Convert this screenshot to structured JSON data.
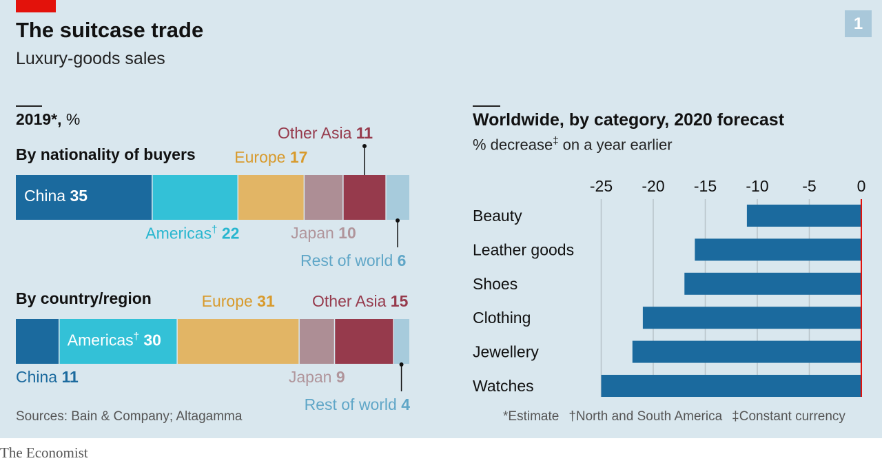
{
  "header": {
    "title": "The suitcase trade",
    "subtitle": "Luxury-goods sales",
    "badge": "1"
  },
  "left": {
    "heading_bold": "2019*,",
    "heading_unit": "%",
    "nationality_title": "By nationality of buyers",
    "country_title": "By country/region"
  },
  "right": {
    "heading": "Worldwide, by category, 2020 forecast",
    "subheading_pre": "% decrease",
    "subheading_mark": "‡",
    "subheading_post": " on a year earlier"
  },
  "footer": {
    "sources": "Sources: Bain & Company; Altagamma",
    "fn_estimate": "*Estimate",
    "fn_americas": "†North and South America",
    "fn_currency": "‡Constant currency",
    "brand": "The Economist"
  },
  "chart_data": [
    {
      "type": "bar",
      "title": "By nationality of buyers",
      "unit": "%",
      "series": [
        {
          "name": "China",
          "value": 35,
          "color": "#1b6a9e"
        },
        {
          "name": "Americas†",
          "value": 22,
          "color": "#33c1d7"
        },
        {
          "name": "Europe",
          "value": 17,
          "color": "#e2b565"
        },
        {
          "name": "Japan",
          "value": 10,
          "color": "#ad8e95"
        },
        {
          "name": "Other Asia",
          "value": 11,
          "color": "#963a4c"
        },
        {
          "name": "Rest of world",
          "value": 6,
          "color": "#a7cbdc"
        }
      ]
    },
    {
      "type": "bar",
      "title": "By country/region",
      "unit": "%",
      "series": [
        {
          "name": "China",
          "value": 11,
          "color": "#1b6a9e"
        },
        {
          "name": "Americas†",
          "value": 30,
          "color": "#33c1d7"
        },
        {
          "name": "Europe",
          "value": 31,
          "color": "#e2b565"
        },
        {
          "name": "Japan",
          "value": 9,
          "color": "#ad8e95"
        },
        {
          "name": "Other Asia",
          "value": 15,
          "color": "#963a4c"
        },
        {
          "name": "Rest of world",
          "value": 4,
          "color": "#a7cbdc"
        }
      ]
    },
    {
      "type": "bar",
      "title": "Worldwide, by category, 2020 forecast",
      "xlabel": "% decrease on a year earlier",
      "xlim": [
        -25,
        0
      ],
      "ticks": [
        -25,
        -20,
        -15,
        -10,
        -5,
        0
      ],
      "tick_labels": [
        "-25",
        "-20",
        "-15",
        "-10",
        "-5",
        "0"
      ],
      "categories": [
        "Beauty",
        "Leather goods",
        "Shoes",
        "Clothing",
        "Jewellery",
        "Watches"
      ],
      "values": [
        -11,
        -16,
        -17,
        -21,
        -22,
        -25
      ],
      "bar_color": "#1b6a9e",
      "zero_line_color": "#e3120b"
    }
  ]
}
